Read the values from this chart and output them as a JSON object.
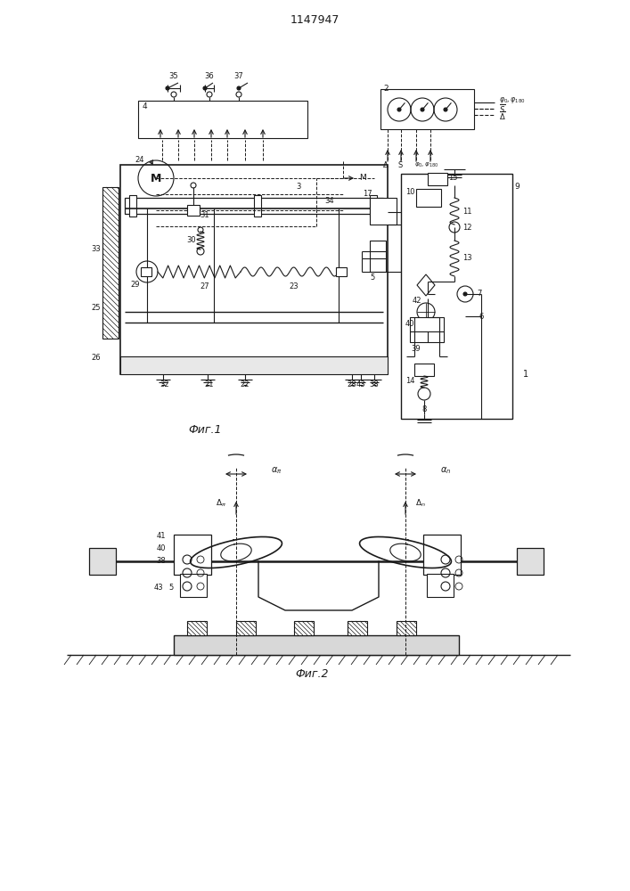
{
  "title": "1147947",
  "fig1_label": "Фиг.1",
  "fig2_label": "Фиг.2",
  "bg_color": "#ffffff",
  "lc": "#1a1a1a",
  "lw": 0.8
}
